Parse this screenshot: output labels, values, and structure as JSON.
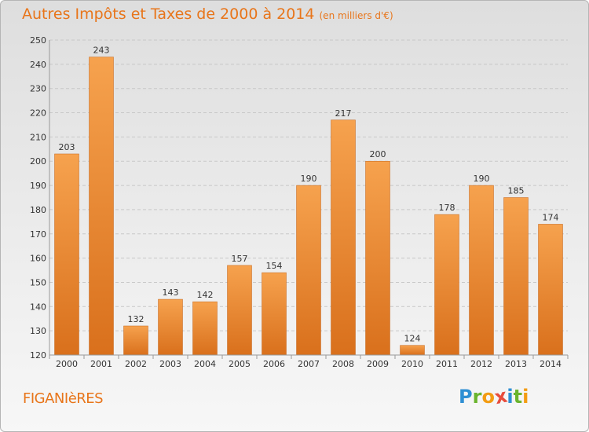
{
  "header": {
    "title": "Autres Impôts et Taxes de 2000 à 2014",
    "unit": "(en milliers d'€)"
  },
  "commune": "FIGANIèRES",
  "logo": {
    "letters": [
      {
        "char": "P",
        "color": "#2f8fd3"
      },
      {
        "char": "r",
        "color": "#6ab42d"
      },
      {
        "char": "o",
        "color": "#f39c12"
      },
      {
        "char": "x",
        "color": "#e74c3c"
      },
      {
        "char": "i",
        "color": "#2f8fd3"
      },
      {
        "char": "t",
        "color": "#6ab42d"
      },
      {
        "char": "i",
        "color": "#f39c12"
      }
    ]
  },
  "colors": {
    "bar_light": "#f6a24e",
    "bar_dark": "#d9701c",
    "accent": "#e8751a",
    "grid": "#c8c8c8",
    "axis_text": "#333333"
  },
  "chart_data": {
    "type": "bar",
    "title": "Autres Impôts et Taxes de 2000 à 2014",
    "subtitle": "(en milliers d'€)",
    "xlabel": "",
    "ylabel": "",
    "categories": [
      "2000",
      "2001",
      "2002",
      "2003",
      "2004",
      "2005",
      "2006",
      "2007",
      "2008",
      "2009",
      "2010",
      "2011",
      "2012",
      "2013",
      "2014"
    ],
    "values": [
      203,
      243,
      132,
      143,
      142,
      157,
      154,
      190,
      217,
      200,
      124,
      178,
      190,
      185,
      174
    ],
    "ylim": [
      120,
      250
    ],
    "yticks": [
      120,
      130,
      140,
      150,
      160,
      170,
      180,
      190,
      200,
      210,
      220,
      230,
      240,
      250
    ],
    "grid": true,
    "legend": "none"
  }
}
